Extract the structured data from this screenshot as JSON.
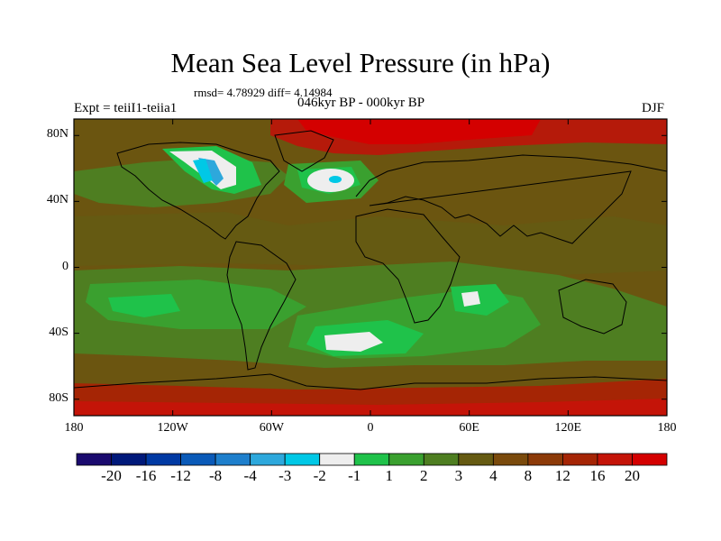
{
  "title": "Mean Sea Level Pressure (in hPa)",
  "stats_line": "rmsd= 4.78929 diff= 4.14984",
  "period": "046kyr BP - 000kyr BP",
  "experiment": "Expt = teiiI1-teiia1",
  "season": "DJF",
  "map": {
    "projection": "cylindrical equidistant, global",
    "lat_ticks": [
      {
        "lat": 80,
        "label": "80N"
      },
      {
        "lat": 40,
        "label": "40N"
      },
      {
        "lat": 0,
        "label": "0"
      },
      {
        "lat": -40,
        "label": "40S"
      },
      {
        "lat": -80,
        "label": "80S"
      }
    ],
    "lon_ticks": [
      {
        "lon": -180,
        "label": "180"
      },
      {
        "lon": -120,
        "label": "120W"
      },
      {
        "lon": -60,
        "label": "60W"
      },
      {
        "lon": 0,
        "label": "0"
      },
      {
        "lon": 60,
        "label": "60E"
      },
      {
        "lon": 120,
        "label": "120E"
      },
      {
        "lon": 180,
        "label": "180"
      }
    ],
    "background_color": "#6b5510"
  },
  "colorbar": {
    "colors": [
      "#1a0a6e",
      "#00197a",
      "#0039a3",
      "#0a5ab8",
      "#1e7fcc",
      "#2da8dc",
      "#00c8e6",
      "#eeeeee",
      "#1fc24a",
      "#3aa02f",
      "#4e7e21",
      "#655a12",
      "#7a4a0c",
      "#8c3a08",
      "#a52505",
      "#c41408",
      "#d40000"
    ],
    "labels": [
      "-20",
      "-16",
      "-12",
      "-8",
      "-4",
      "-3",
      "-2",
      "-1",
      "1",
      "2",
      "3",
      "4",
      "8",
      "12",
      "16",
      "20"
    ]
  }
}
